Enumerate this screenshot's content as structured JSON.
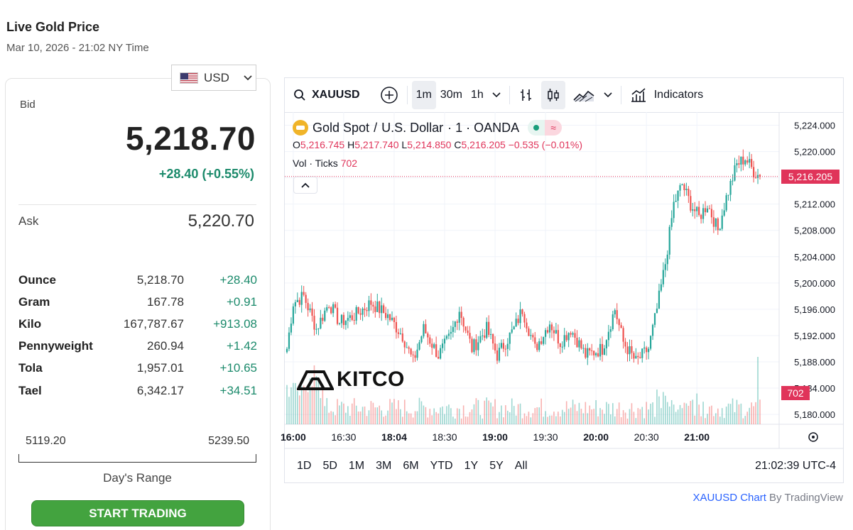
{
  "header": {
    "title": "Live Gold Price",
    "timestamp": "Mar 10, 2026 - 21:02 NY Time"
  },
  "currency": {
    "selected": "USD",
    "flag_icon": "us-flag-icon"
  },
  "bid": {
    "label": "Bid",
    "value": "5,218.70",
    "change": "+28.40 (+0.55%)"
  },
  "ask": {
    "label": "Ask",
    "value": "5,220.70"
  },
  "units": [
    {
      "name": "Ounce",
      "price": "5,218.70",
      "change": "+28.40"
    },
    {
      "name": "Gram",
      "price": "167.78",
      "change": "+0.91"
    },
    {
      "name": "Kilo",
      "price": "167,787.67",
      "change": "+913.08"
    },
    {
      "name": "Pennyweight",
      "price": "260.94",
      "change": "+1.42"
    },
    {
      "name": "Tola",
      "price": "1,957.01",
      "change": "+10.65"
    },
    {
      "name": "Tael",
      "price": "6,342.17",
      "change": "+34.51"
    }
  ],
  "day_range": {
    "low": "5119.20",
    "high": "5239.50",
    "label": "Day's Range"
  },
  "cta": {
    "label": "START TRADING"
  },
  "chart_toolbar": {
    "symbol": "XAUUSD",
    "intervals": [
      "1m",
      "30m",
      "1h"
    ],
    "active_interval": "1m",
    "indicators_label": "Indicators"
  },
  "chart_legend": {
    "title": "Gold Spot",
    "sep": "/",
    "quote": "U.S. Dollar",
    "detail": "· 1 · OANDA",
    "o_label": "O",
    "o": "5,216.745",
    "h_label": "H",
    "h": "5,217.740",
    "l_label": "L",
    "l": "5,214.850",
    "c_label": "C",
    "c": "5,216.205",
    "chg": "−0.535 (−0.01%)",
    "vol_label": "Vol · Ticks",
    "vol": "702"
  },
  "chart_tags": {
    "last_price": "5,216.205",
    "last_volume": "702"
  },
  "brand": {
    "name": "KITCO"
  },
  "range_buttons": [
    "1D",
    "5D",
    "1M",
    "3M",
    "6M",
    "YTD",
    "1Y",
    "5Y",
    "All"
  ],
  "chart_clock": "21:02:39 UTC-4",
  "attribution": {
    "link": "XAUUSD Chart",
    "by": "By TradingView"
  },
  "colors": {
    "up": "#26a69a",
    "down": "#ef5350",
    "last_price": "#e0345a",
    "green_text": "#1b8a6b",
    "cta": "#43a33f"
  },
  "chart_data": {
    "type": "candlestick",
    "title": "Gold Spot / U.S. Dollar · 1 · OANDA",
    "ylim": [
      5178.5,
      5226
    ],
    "y_ticks": [
      "5,224.000",
      "5,220.000",
      "5,216.000",
      "5,212.000",
      "5,208.000",
      "5,204.000",
      "5,200.000",
      "5,196.000",
      "5,192.000",
      "5,188.000",
      "5,184.000",
      "5,180.000"
    ],
    "x_ticks": [
      {
        "label": "16:00",
        "bold": true,
        "index": 3
      },
      {
        "label": "16:30",
        "bold": false,
        "index": 27
      },
      {
        "label": "18:04",
        "bold": true,
        "index": 51
      },
      {
        "label": "18:30",
        "bold": false,
        "index": 75
      },
      {
        "label": "19:00",
        "bold": true,
        "index": 99
      },
      {
        "label": "19:30",
        "bold": false,
        "index": 123
      },
      {
        "label": "20:00",
        "bold": true,
        "index": 147
      },
      {
        "label": "20:30",
        "bold": false,
        "index": 171
      },
      {
        "label": "21:00",
        "bold": true,
        "index": 195
      }
    ],
    "checkpoints": [
      [
        0,
        5190
      ],
      [
        3,
        5197
      ],
      [
        8,
        5198
      ],
      [
        14,
        5193
      ],
      [
        20,
        5197
      ],
      [
        25,
        5194
      ],
      [
        32,
        5195
      ],
      [
        40,
        5197
      ],
      [
        48,
        5195
      ],
      [
        55,
        5192
      ],
      [
        60,
        5188
      ],
      [
        65,
        5193
      ],
      [
        72,
        5189
      ],
      [
        78,
        5192
      ],
      [
        82,
        5196
      ],
      [
        88,
        5190
      ],
      [
        95,
        5193
      ],
      [
        100,
        5189
      ],
      [
        108,
        5193
      ],
      [
        112,
        5196
      ],
      [
        118,
        5190
      ],
      [
        125,
        5194
      ],
      [
        130,
        5191
      ],
      [
        135,
        5193
      ],
      [
        142,
        5189
      ],
      [
        150,
        5190
      ],
      [
        156,
        5196
      ],
      [
        160,
        5191
      ],
      [
        166,
        5188
      ],
      [
        172,
        5190
      ],
      [
        176,
        5196
      ],
      [
        180,
        5203
      ],
      [
        184,
        5212
      ],
      [
        188,
        5215
      ],
      [
        192,
        5212
      ],
      [
        196,
        5210
      ],
      [
        200,
        5212
      ],
      [
        205,
        5208
      ],
      [
        209,
        5213
      ],
      [
        214,
        5218
      ],
      [
        218,
        5219
      ],
      [
        222,
        5217
      ],
      [
        225,
        5216.2
      ]
    ],
    "last_close": 5216.205,
    "last_volume": 702
  }
}
